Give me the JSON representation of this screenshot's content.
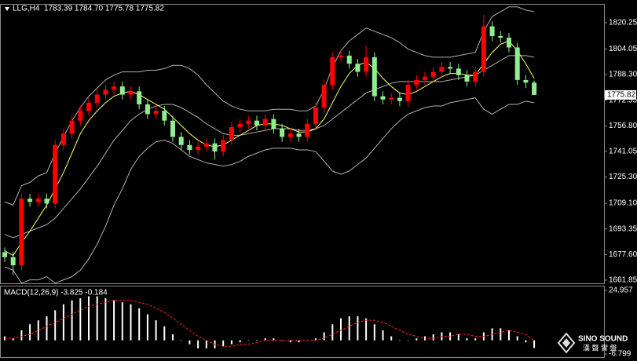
{
  "chart_data": [
    {
      "type": "candlestick",
      "title": "LLG,H4",
      "info": "1783.39 1784.70 1775.78 1775.82",
      "open": [
        1679,
        1676,
        1671,
        1712,
        1710,
        1712,
        1709,
        1745,
        1752,
        1760,
        1766,
        1771,
        1776,
        1779,
        1781,
        1776,
        1778,
        1770,
        1764,
        1766,
        1760,
        1750,
        1745,
        1742,
        1744,
        1746,
        1741,
        1748,
        1756,
        1758,
        1760,
        1757,
        1761,
        1755,
        1750,
        1752,
        1750,
        1758,
        1768,
        1782,
        1799,
        1800,
        1795,
        1790,
        1799,
        1775,
        1773,
        1774,
        1772,
        1782,
        1785,
        1787,
        1790,
        1793,
        1792,
        1788,
        1784,
        1790,
        1818,
        1812,
        1811,
        1805,
        1785,
        1783.39
      ],
      "high": [
        1682,
        1679,
        1715,
        1715,
        1715,
        1715,
        1748,
        1755,
        1763,
        1769,
        1774,
        1779,
        1782,
        1784,
        1784,
        1781,
        1781,
        1773,
        1769,
        1769,
        1763,
        1753,
        1748,
        1747,
        1749,
        1749,
        1751,
        1759,
        1761,
        1763,
        1763,
        1764,
        1764,
        1758,
        1755,
        1755,
        1761,
        1771,
        1785,
        1802,
        1803,
        1803,
        1798,
        1806,
        1802,
        1778,
        1777,
        1777,
        1785,
        1788,
        1790,
        1793,
        1796,
        1796,
        1795,
        1791,
        1793,
        1825,
        1821,
        1815,
        1814,
        1808,
        1788,
        1784.7
      ],
      "low": [
        1673,
        1665,
        1668,
        1707,
        1707,
        1706,
        1706,
        1742,
        1749,
        1757,
        1763,
        1768,
        1773,
        1776,
        1773,
        1773,
        1767,
        1761,
        1761,
        1757,
        1747,
        1742,
        1739,
        1739,
        1741,
        1736,
        1738,
        1745,
        1753,
        1755,
        1754,
        1754,
        1752,
        1747,
        1747,
        1747,
        1747,
        1755,
        1765,
        1779,
        1796,
        1792,
        1787,
        1787,
        1772,
        1770,
        1770,
        1769,
        1769,
        1779,
        1782,
        1784,
        1787,
        1789,
        1785,
        1781,
        1781,
        1787,
        1809,
        1808,
        1802,
        1782,
        1780,
        1775.78
      ],
      "close": [
        1676,
        1671,
        1712,
        1710,
        1712,
        1709,
        1745,
        1752,
        1760,
        1766,
        1771,
        1776,
        1779,
        1781,
        1776,
        1778,
        1770,
        1764,
        1766,
        1760,
        1750,
        1745,
        1742,
        1744,
        1746,
        1741,
        1748,
        1756,
        1758,
        1760,
        1757,
        1761,
        1755,
        1750,
        1752,
        1750,
        1758,
        1768,
        1782,
        1799,
        1800,
        1795,
        1790,
        1799,
        1775,
        1773,
        1774,
        1772,
        1782,
        1785,
        1787,
        1790,
        1793,
        1792,
        1788,
        1784,
        1790,
        1818,
        1812,
        1811,
        1805,
        1785,
        1783.39,
        1775.82
      ],
      "up_color": "#ff0000",
      "down_color": "#90ee90",
      "lines": [
        {
          "color": "#b0b0b0",
          "values": [
            1710,
            1708,
            1720,
            1722,
            1726,
            1728,
            1740,
            1750,
            1760,
            1768,
            1775,
            1780,
            1785,
            1788,
            1790,
            1790,
            1790,
            1791,
            1791,
            1792,
            1794,
            1794,
            1792,
            1788,
            1782,
            1777,
            1772,
            1769,
            1767,
            1766,
            1766,
            1766,
            1767,
            1767,
            1767,
            1766,
            1766,
            1769,
            1779,
            1793,
            1803,
            1809,
            1813,
            1817,
            1815,
            1813,
            1811,
            1808,
            1804,
            1802,
            1800,
            1799,
            1799,
            1799,
            1800,
            1801,
            1802,
            1815,
            1824,
            1827,
            1830,
            1830,
            1828,
            1827
          ]
        },
        {
          "color": "#b0b0b0",
          "values": [
            1690,
            1688,
            1690,
            1692,
            1694,
            1696,
            1700,
            1706,
            1712,
            1718,
            1725,
            1732,
            1740,
            1748,
            1754,
            1760,
            1764,
            1767,
            1769,
            1770,
            1770,
            1768,
            1765,
            1762,
            1758,
            1755,
            1752,
            1751,
            1751,
            1752,
            1753,
            1754,
            1755,
            1755,
            1755,
            1754,
            1754,
            1755,
            1757,
            1761,
            1765,
            1769,
            1773,
            1777,
            1779,
            1781,
            1783,
            1784,
            1784,
            1784,
            1784,
            1784,
            1784,
            1785,
            1786,
            1787,
            1788,
            1791,
            1794,
            1797,
            1800,
            1800,
            1800,
            1799
          ]
        },
        {
          "color": "#b0b0b0",
          "values": [
            1670,
            1668,
            1660,
            1662,
            1662,
            1664,
            1660,
            1662,
            1664,
            1668,
            1675,
            1684,
            1695,
            1708,
            1718,
            1730,
            1738,
            1743,
            1747,
            1748,
            1746,
            1742,
            1738,
            1736,
            1734,
            1733,
            1732,
            1733,
            1735,
            1738,
            1740,
            1742,
            1743,
            1743,
            1743,
            1742,
            1742,
            1741,
            1735,
            1729,
            1727,
            1729,
            1733,
            1737,
            1743,
            1749,
            1755,
            1760,
            1764,
            1766,
            1768,
            1769,
            1769,
            1771,
            1772,
            1773,
            1774,
            1767,
            1764,
            1767,
            1770,
            1770,
            1772,
            1771
          ]
        },
        {
          "color": "#ffff66",
          "values": [
            1680,
            1677,
            1685,
            1692,
            1700,
            1708,
            1718,
            1728,
            1740,
            1752,
            1760,
            1766,
            1771,
            1775,
            1777,
            1778,
            1776,
            1773,
            1770,
            1767,
            1762,
            1757,
            1752,
            1748,
            1745,
            1744,
            1745,
            1748,
            1751,
            1754,
            1757,
            1758,
            1758,
            1757,
            1755,
            1753,
            1753,
            1755,
            1761,
            1771,
            1781,
            1789,
            1794,
            1796,
            1792,
            1786,
            1781,
            1777,
            1776,
            1778,
            1781,
            1784,
            1787,
            1789,
            1789,
            1788,
            1788,
            1795,
            1802,
            1807,
            1809,
            1803,
            1795,
            1786
          ]
        }
      ],
      "ylim": [
        1659.9,
        1831.8
      ],
      "yticks": [
        1661.85,
        {
          "value": 1677.6,
          "label": "1677.60"
        },
        1693.35,
        {
          "value": 1709.1,
          "label": "1709.10"
        },
        {
          "value": 1725.3,
          "label": "1725.30"
        },
        1741.05,
        {
          "value": 1756.8,
          "label": "1756.80"
        },
        1772.55,
        {
          "value": 1788.3,
          "label": "1788.30"
        },
        1804.05,
        1820.25
      ]
    },
    {
      "type": "macd",
      "title": "MACD(12,26,9) -3.825 -0.184",
      "histogram": [
        2,
        1,
        5,
        8,
        10,
        12,
        15,
        18,
        20,
        21,
        22,
        22,
        21,
        20,
        19,
        18,
        16,
        13,
        10,
        7,
        3,
        0,
        -2,
        -4,
        -4,
        -4,
        -3,
        -2,
        -1,
        0,
        0,
        1,
        1,
        0,
        -1,
        -1,
        0,
        1,
        4,
        8,
        11,
        12,
        12,
        11,
        8,
        5,
        2,
        0,
        0,
        1,
        2,
        3,
        4,
        4,
        3,
        1,
        1,
        4,
        6,
        6,
        5,
        2,
        -1,
        -3.825
      ],
      "signal": [
        1,
        1,
        2,
        3,
        5,
        7,
        9,
        11,
        13,
        15,
        17,
        18,
        19,
        20,
        20,
        20,
        19,
        18,
        16,
        14,
        11,
        8,
        5,
        2,
        0,
        -2,
        -3,
        -3,
        -2,
        -2,
        -1,
        0,
        0,
        0,
        0,
        0,
        0,
        0,
        1,
        3,
        5,
        7,
        9,
        10,
        10,
        9,
        7,
        5,
        3,
        2,
        1,
        1,
        2,
        2,
        3,
        3,
        2,
        2,
        3,
        4,
        5,
        4,
        3,
        -0.184
      ],
      "histogram_color": "#ffffff",
      "signal_color": "#ff2020",
      "ylim": [
        -8.76,
        27.31
      ],
      "yticks": [
        24.957,
        -6.799
      ]
    }
  ],
  "watermark": {
    "brand": "SINO SOUND",
    "tagline": "漢 聲 實 盤"
  }
}
